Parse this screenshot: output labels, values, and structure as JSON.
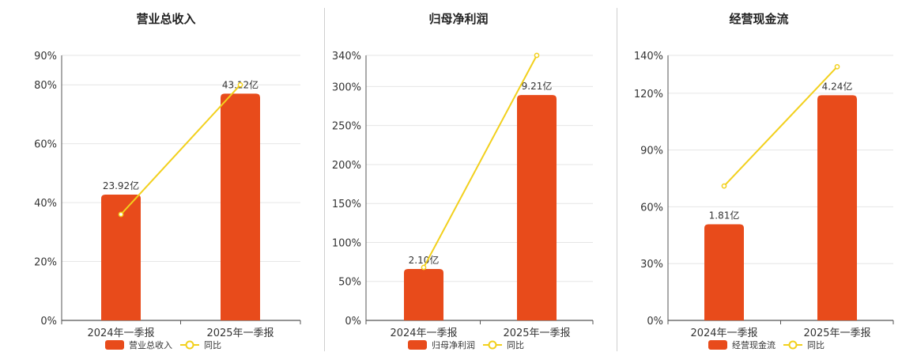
{
  "colors": {
    "bar": "#e84b1b",
    "line": "#f2d01d",
    "grid": "#e6e6e6",
    "axis": "#555555"
  },
  "chart_data": [
    {
      "type": "bar",
      "title": "营业总收入",
      "categories": [
        "2024年一季报",
        "2025年一季报"
      ],
      "series": [
        {
          "name": "营业总收入",
          "type": "bar",
          "values": [
            23.92,
            43.12
          ],
          "labels": [
            "23.92亿",
            "43.12亿"
          ]
        },
        {
          "name": "同比",
          "type": "line",
          "values": [
            36,
            80
          ]
        }
      ],
      "yticks": [
        "0%",
        "20%",
        "40%",
        "60%",
        "80%",
        "90%"
      ],
      "ytick_values": [
        0,
        20,
        40,
        60,
        80,
        90
      ],
      "ylim": [
        0,
        90
      ],
      "bar_scale_max": 50.4,
      "legend": "bottom"
    },
    {
      "type": "bar",
      "title": "归母净利润",
      "categories": [
        "2024年一季报",
        "2025年一季报"
      ],
      "series": [
        {
          "name": "归母净利润",
          "type": "bar",
          "values": [
            2.1,
            9.21
          ],
          "labels": [
            "2.10亿",
            "9.21亿"
          ]
        },
        {
          "name": "同比",
          "type": "line",
          "values": [
            68,
            340
          ]
        }
      ],
      "yticks": [
        "0%",
        "50%",
        "100%",
        "150%",
        "200%",
        "250%",
        "300%",
        "340%"
      ],
      "ytick_values": [
        0,
        50,
        100,
        150,
        200,
        250,
        300,
        340
      ],
      "ylim": [
        0,
        340
      ],
      "bar_scale_max": 10.83,
      "legend": "bottom"
    },
    {
      "type": "bar",
      "title": "经营现金流",
      "categories": [
        "2024年一季报",
        "2025年一季报"
      ],
      "series": [
        {
          "name": "经营现金流",
          "type": "bar",
          "values": [
            1.81,
            4.24
          ],
          "labels": [
            "1.81亿",
            "4.24亿"
          ]
        },
        {
          "name": "同比",
          "type": "line",
          "values": [
            71,
            134
          ]
        }
      ],
      "yticks": [
        "0%",
        "30%",
        "60%",
        "90%",
        "120%",
        "140%"
      ],
      "ytick_values": [
        0,
        30,
        60,
        90,
        120,
        140
      ],
      "ylim": [
        0,
        140
      ],
      "bar_scale_max": 4.99,
      "legend": "bottom"
    }
  ]
}
